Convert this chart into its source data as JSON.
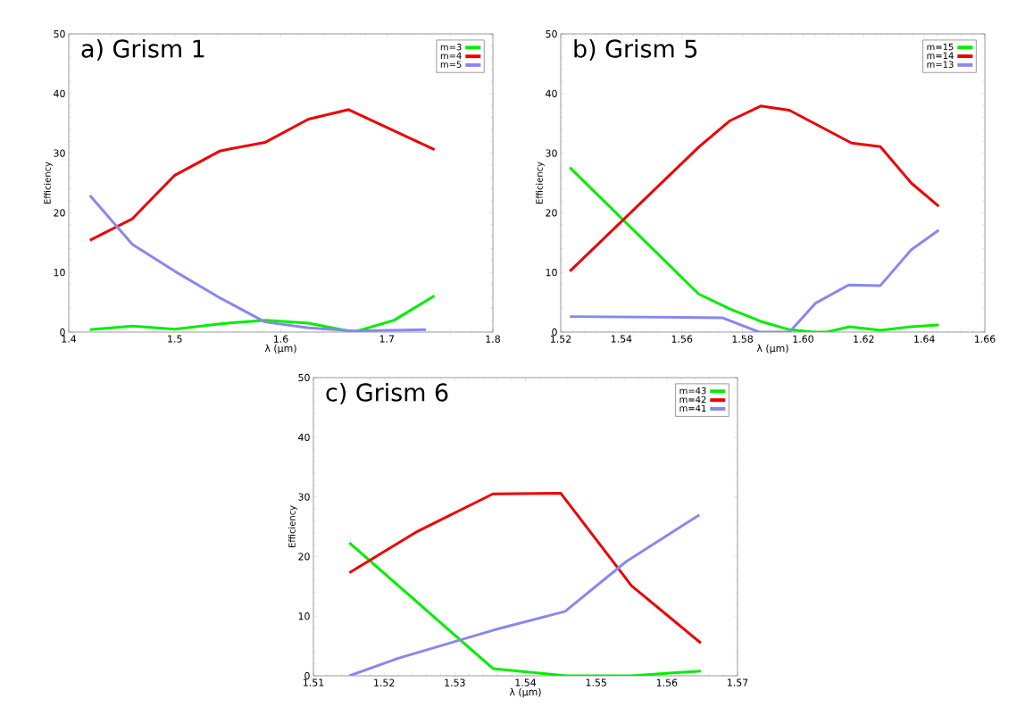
{
  "chart_data": [
    {
      "type": "line",
      "title": "a) Grism 1",
      "xlabel": "λ (μm)",
      "ylabel": "Efficiency",
      "xlim": [
        1.4,
        1.8
      ],
      "ylim": [
        0,
        50
      ],
      "xticks": [
        1.4,
        1.5,
        1.6,
        1.7,
        1.8
      ],
      "yticks": [
        0,
        10,
        20,
        30,
        40,
        50
      ],
      "legend": "top right",
      "series": [
        {
          "name": "m=3",
          "color": "#00ee00",
          "x": [
            1.42,
            1.46,
            1.5,
            1.543,
            1.586,
            1.626,
            1.669,
            1.707,
            1.745
          ],
          "values": [
            0.4,
            1.0,
            0.5,
            1.4,
            2.0,
            1.5,
            0,
            2.0,
            6.1
          ]
        },
        {
          "name": "m=4",
          "color": "#ee0000",
          "x": [
            1.42,
            1.46,
            1.5,
            1.543,
            1.585,
            1.626,
            1.664,
            1.745
          ],
          "values": [
            15.4,
            19.0,
            26.3,
            30.4,
            31.8,
            35.7,
            37.3,
            30.6
          ]
        },
        {
          "name": "m=5",
          "color": "#8888ee",
          "x": [
            1.42,
            1.46,
            1.5,
            1.543,
            1.585,
            1.626,
            1.669,
            1.737
          ],
          "values": [
            22.9,
            14.7,
            10.2,
            5.7,
            1.7,
            0.7,
            0.2,
            0.4
          ]
        }
      ]
    },
    {
      "type": "line",
      "title": "b) Grism 5",
      "xlabel": "λ (μm)",
      "ylabel": "Efficiency",
      "xlim": [
        1.52,
        1.66
      ],
      "ylim": [
        0,
        50
      ],
      "xticks": [
        1.52,
        1.54,
        1.56,
        1.58,
        {
          "value": 1.6,
          "label": "1.60"
        },
        1.62,
        1.64,
        1.66
      ],
      "yticks": [
        0,
        10,
        20,
        30,
        40,
        50
      ],
      "legend": "top right",
      "series": [
        {
          "name": "m=15",
          "color": "#00ee00",
          "x": [
            1.523,
            1.5655,
            1.5757,
            1.586,
            1.5955,
            1.6035,
            1.6078,
            1.6153,
            1.6255,
            1.6357,
            1.6448
          ],
          "values": [
            27.6,
            6.4,
            3.9,
            1.8,
            0.4,
            0,
            0,
            0.9,
            0.3,
            0.9,
            1.2
          ]
        },
        {
          "name": "m=14",
          "color": "#ee0000",
          "x": [
            1.523,
            1.5655,
            1.5757,
            1.586,
            1.5955,
            1.616,
            1.6255,
            1.6357,
            1.6448
          ],
          "values": [
            10.2,
            31.0,
            35.4,
            37.9,
            37.2,
            31.7,
            31.1,
            25.0,
            21.1
          ]
        },
        {
          "name": "m=13",
          "color": "#8888ee",
          "x": [
            1.523,
            1.5733,
            1.5855,
            1.5955,
            1.604,
            1.615,
            1.6255,
            1.6357,
            1.6448
          ],
          "values": [
            2.6,
            2.4,
            0,
            0,
            4.8,
            7.9,
            7.8,
            13.8,
            17.1
          ]
        }
      ]
    },
    {
      "type": "line",
      "title": "c) Grism 6",
      "xlabel": "λ (μm)",
      "ylabel": "Efficiency",
      "xlim": [
        1.51,
        1.57
      ],
      "ylim": [
        0,
        50
      ],
      "xticks": [
        1.51,
        1.52,
        1.53,
        1.54,
        1.55,
        1.56,
        1.57
      ],
      "yticks": [
        0,
        10,
        20,
        30,
        40,
        50
      ],
      "legend": "top right",
      "series": [
        {
          "name": "m=43",
          "color": "#00ee00",
          "x": [
            1.5151,
            1.5354,
            1.5458,
            1.555,
            1.5648
          ],
          "values": [
            22.3,
            1.2,
            0,
            0,
            0.8
          ]
        },
        {
          "name": "m=42",
          "color": "#ee0000",
          "x": [
            1.5151,
            1.5247,
            1.5354,
            1.545,
            1.555,
            1.5648
          ],
          "values": [
            17.3,
            24.2,
            30.5,
            30.6,
            15.1,
            5.5
          ]
        },
        {
          "name": "m=41",
          "color": "#8888ee",
          "x": [
            1.5151,
            1.5219,
            1.5356,
            1.5456,
            1.5543,
            1.5646
          ],
          "values": [
            0,
            2.9,
            7.7,
            10.8,
            19.2,
            27.0
          ]
        }
      ]
    }
  ]
}
